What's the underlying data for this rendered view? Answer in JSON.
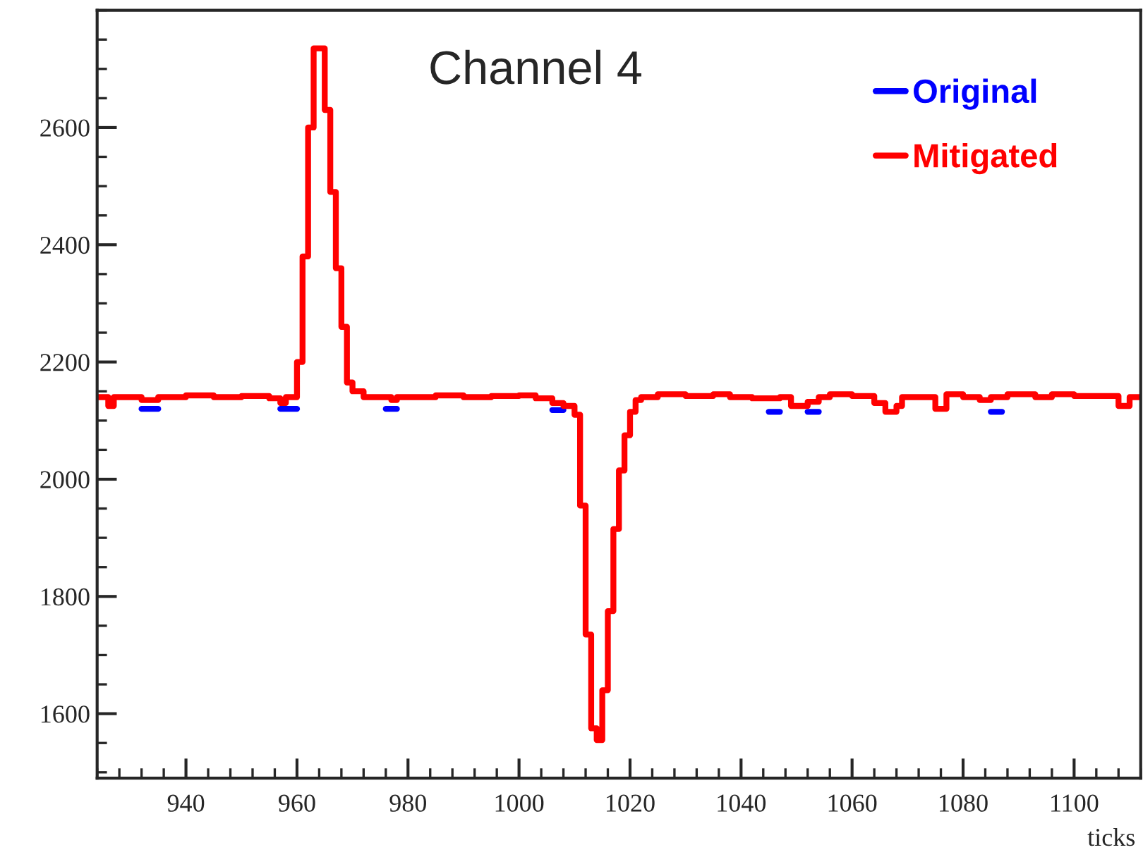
{
  "chart_data": {
    "type": "step",
    "title": "Channel 4",
    "xlabel": "ticks",
    "xlim": [
      924,
      1112
    ],
    "xticks": [
      940,
      960,
      980,
      1000,
      1020,
      1040,
      1060,
      1080,
      1100
    ],
    "ylim": [
      1490,
      2800
    ],
    "yticks": [
      1600,
      1800,
      2000,
      2200,
      2400,
      2600
    ],
    "grid": false,
    "legend": "top right",
    "line_style": "solid",
    "marker": "none",
    "series": [
      {
        "name": "Original",
        "color": "#0000ff",
        "x": [
          932,
          935
        ],
        "values": [
          2120,
          2120
        ]
      },
      {
        "color": "#0000ff",
        "x": [
          957,
          960
        ],
        "values": [
          2120,
          2120
        ]
      },
      {
        "color": "#0000ff",
        "x": [
          976,
          978
        ],
        "values": [
          2120,
          2120
        ]
      },
      {
        "color": "#0000ff",
        "x": [
          1006,
          1008
        ],
        "values": [
          2118,
          2118
        ]
      },
      {
        "color": "#0000ff",
        "x": [
          1045,
          1047
        ],
        "values": [
          2115,
          2115
        ]
      },
      {
        "color": "#0000ff",
        "x": [
          1052,
          1054
        ],
        "values": [
          2115,
          2115
        ]
      },
      {
        "color": "#0000ff",
        "x": [
          1085,
          1087
        ],
        "values": [
          2115,
          2115
        ]
      },
      {
        "name": "Mitigated",
        "color": "#ff0000",
        "x": [
          924,
          926,
          927,
          932,
          935,
          940,
          945,
          950,
          955,
          957,
          958,
          960,
          961,
          962,
          963,
          965,
          966,
          967,
          968,
          969,
          970,
          972,
          977,
          978,
          985,
          990,
          995,
          1000,
          1003,
          1006,
          1008,
          1010,
          1011,
          1012,
          1013,
          1014,
          1015,
          1016,
          1017,
          1018,
          1019,
          1020,
          1021,
          1022,
          1025,
          1030,
          1035,
          1038,
          1042,
          1047,
          1049,
          1052,
          1054,
          1056,
          1060,
          1064,
          1066,
          1068,
          1069,
          1075,
          1077,
          1080,
          1083,
          1085,
          1088,
          1093,
          1096,
          1100,
          1108,
          1110,
          1112
        ],
        "values": [
          2140,
          2125,
          2140,
          2135,
          2140,
          2143,
          2140,
          2142,
          2138,
          2130,
          2140,
          2200,
          2380,
          2600,
          2735,
          2630,
          2490,
          2360,
          2260,
          2165,
          2150,
          2140,
          2135,
          2140,
          2143,
          2140,
          2142,
          2143,
          2138,
          2130,
          2125,
          2110,
          1955,
          1735,
          1575,
          1555,
          1640,
          1775,
          1915,
          2015,
          2075,
          2115,
          2135,
          2140,
          2145,
          2142,
          2145,
          2140,
          2138,
          2140,
          2125,
          2132,
          2140,
          2145,
          2142,
          2130,
          2115,
          2125,
          2140,
          2120,
          2145,
          2140,
          2135,
          2140,
          2145,
          2140,
          2145,
          2142,
          2125,
          2140,
          2140
        ]
      }
    ]
  }
}
